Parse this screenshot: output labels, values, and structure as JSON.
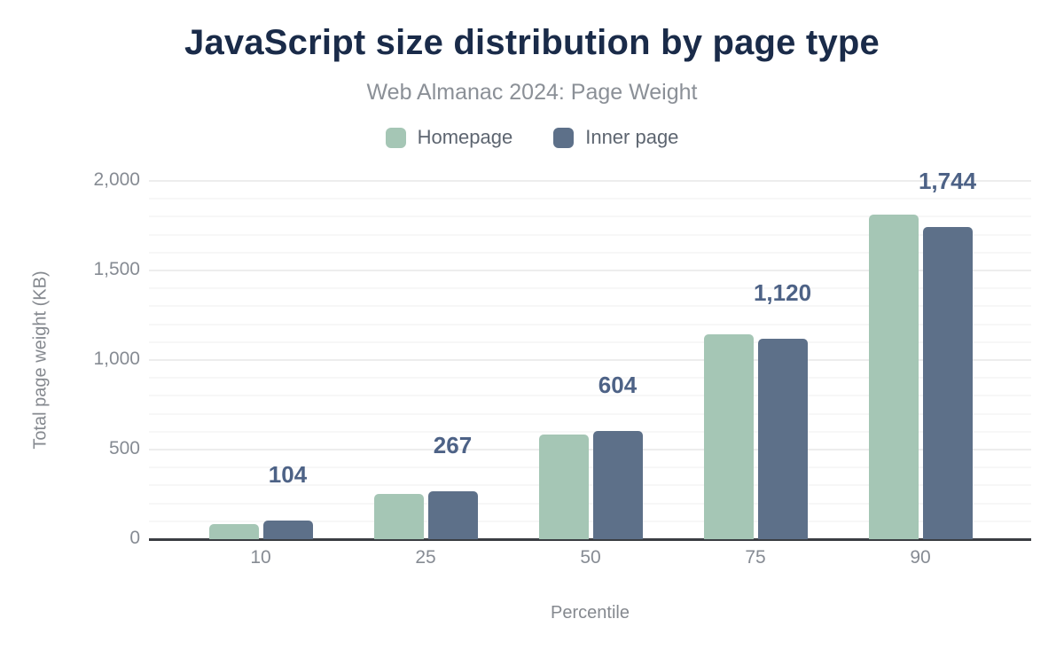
{
  "chart_data": {
    "type": "bar",
    "title": "JavaScript size distribution by page type",
    "subtitle": "Web Almanac 2024: Page Weight",
    "xlabel": "Percentile",
    "ylabel": "Total page weight (KB)",
    "categories": [
      "10",
      "25",
      "50",
      "75",
      "90"
    ],
    "series": [
      {
        "name": "Homepage",
        "color": "#a5c6b5",
        "values": [
          84,
          251,
          586,
          1145,
          1812
        ]
      },
      {
        "name": "Inner page",
        "color": "#5d7089",
        "values": [
          104,
          267,
          604,
          1120,
          1744
        ]
      }
    ],
    "data_labels": {
      "series": "Inner page",
      "values": [
        "104",
        "267",
        "604",
        "1,120",
        "1,744"
      ]
    },
    "ylim": [
      0,
      2000
    ],
    "y_ticks": [
      {
        "value": 0,
        "label": "0"
      },
      {
        "value": 500,
        "label": "500"
      },
      {
        "value": 1000,
        "label": "1,000"
      },
      {
        "value": 1500,
        "label": "1,500"
      },
      {
        "value": 2000,
        "label": "2,000"
      }
    ],
    "x_ticks": [
      "10",
      "25",
      "50",
      "75",
      "90"
    ],
    "grid": {
      "minor_step": 100,
      "major_step": 500,
      "minor_color": "#f7f7f7",
      "major_color": "#ededed"
    },
    "legend_position": "top-center",
    "colors": {
      "title": "#1a2b49",
      "subtitle": "#8b9097",
      "legend_text": "#5d6570",
      "tick": "#868b93",
      "data_label": "#4d6286",
      "axis_line": "#3a3d42",
      "background": "#ffffff"
    }
  }
}
